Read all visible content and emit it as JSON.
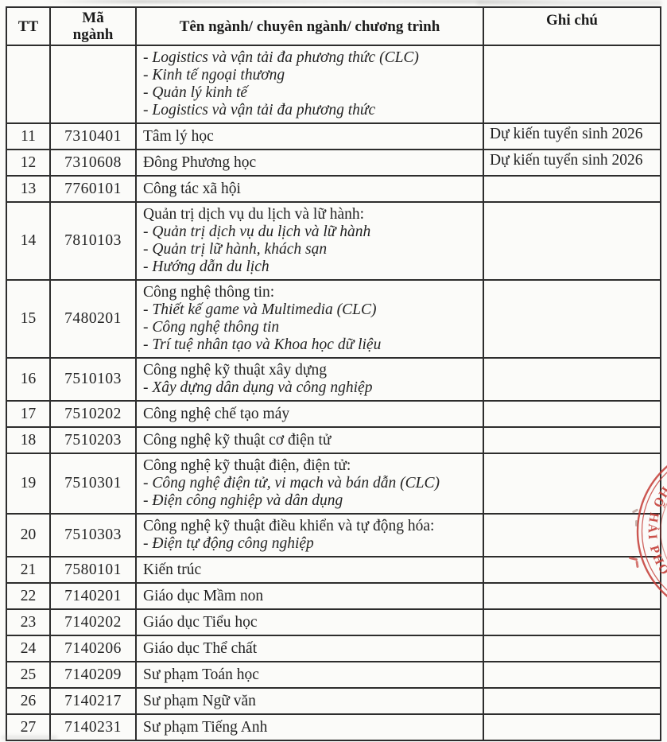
{
  "table": {
    "columns": [
      {
        "label": "TT"
      },
      {
        "label": "Mã\nngành"
      },
      {
        "label": "Tên ngành/ chuyên ngành/ chương trình"
      },
      {
        "label": "Ghi chú"
      }
    ],
    "rows": [
      {
        "tt": "",
        "code": "",
        "name": "",
        "subitems": [
          "- Logistics và vận tải đa phương thức (CLC)",
          "- Kinh tế ngoại thương",
          "- Quản lý kinh tế",
          "- Logistics và vận tải đa phương thức"
        ],
        "note": ""
      },
      {
        "tt": "11",
        "code": "7310401",
        "name": "Tâm lý học",
        "subitems": [],
        "note": "Dự kiến tuyển sinh 2026"
      },
      {
        "tt": "12",
        "code": "7310608",
        "name": "Đông Phương học",
        "subitems": [],
        "note": "Dự kiến tuyển sinh 2026"
      },
      {
        "tt": "13",
        "code": "7760101",
        "name": "Công tác xã hội",
        "subitems": [],
        "note": ""
      },
      {
        "tt": "14",
        "code": "7810103",
        "name": "Quản trị dịch vụ du lịch và lữ hành:",
        "subitems": [
          "- Quản trị dịch vụ du lịch và lữ hành",
          "- Quản trị lữ hành, khách sạn",
          "- Hướng dẫn du lịch"
        ],
        "note": ""
      },
      {
        "tt": "15",
        "code": "7480201",
        "name": "Công nghệ thông tin:",
        "subitems": [
          "- Thiết kế game và Multimedia (CLC)",
          "- Công nghệ thông tin",
          "- Trí tuệ nhân tạo và Khoa học dữ liệu"
        ],
        "note": ""
      },
      {
        "tt": "16",
        "code": "7510103",
        "name": "Công nghệ kỹ thuật xây dựng",
        "subitems": [
          "- Xây dựng dân dụng và công nghiệp"
        ],
        "note": ""
      },
      {
        "tt": "17",
        "code": "7510202",
        "name": "Công nghệ chế tạo máy",
        "subitems": [],
        "note": ""
      },
      {
        "tt": "18",
        "code": "7510203",
        "name": "Công nghệ kỹ thuật cơ điện tử",
        "subitems": [],
        "note": ""
      },
      {
        "tt": "19",
        "code": "7510301",
        "name": "Công nghệ kỹ thuật điện, điện tử:",
        "subitems": [
          "- Công nghệ điện tử, vi mạch và bán dẫn (CLC)",
          "- Điện công nghiệp và dân dụng"
        ],
        "note": ""
      },
      {
        "tt": "20",
        "code": "7510303",
        "name": "Công nghệ kỹ thuật điều khiển và tự động hóa:",
        "subitems": [
          "- Điện tự động công nghiệp"
        ],
        "note": ""
      },
      {
        "tt": "21",
        "code": "7580101",
        "name": "Kiến trúc",
        "subitems": [],
        "note": ""
      },
      {
        "tt": "22",
        "code": "7140201",
        "name": "Giáo dục Mầm non",
        "subitems": [],
        "note": ""
      },
      {
        "tt": "23",
        "code": "7140202",
        "name": "Giáo dục Tiểu học",
        "subitems": [],
        "note": ""
      },
      {
        "tt": "24",
        "code": "7140206",
        "name": "Giáo dục Thể chất",
        "subitems": [],
        "note": ""
      },
      {
        "tt": "25",
        "code": "7140209",
        "name": "Sư phạm Toán học",
        "subitems": [],
        "note": ""
      },
      {
        "tt": "26",
        "code": "7140217",
        "name": "Sư phạm Ngữ văn",
        "subitems": [],
        "note": ""
      },
      {
        "tt": "27",
        "code": "7140231",
        "name": "Sư phạm Tiếng Anh",
        "subitems": [],
        "note": ""
      }
    ]
  },
  "stamp": {
    "arc_text": "PHỐ HẢI PHÒ",
    "color": "#c5403a"
  }
}
